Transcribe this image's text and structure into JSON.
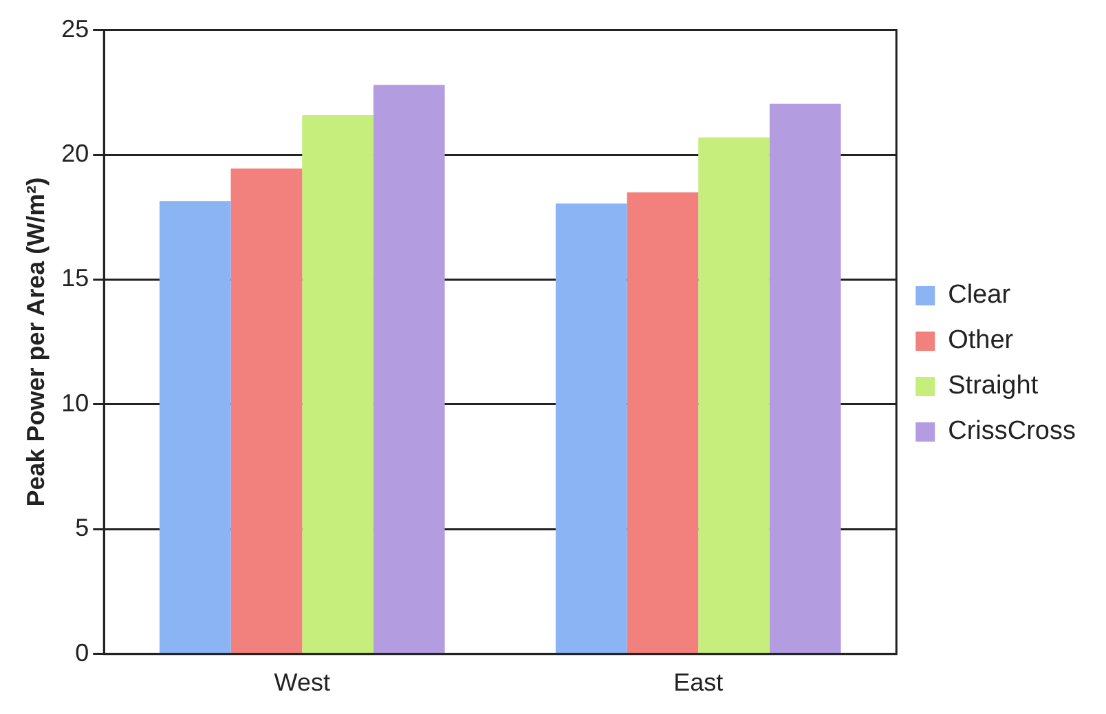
{
  "chart_data": {
    "type": "bar",
    "ylabel": "Peak Power per Area (W/m²)",
    "categories": [
      "West",
      "East"
    ],
    "series": [
      {
        "name": "Clear",
        "color": "#8ab4f4",
        "values": [
          18.15,
          18.05
        ]
      },
      {
        "name": "Other",
        "color": "#f2807c",
        "values": [
          19.45,
          18.5
        ]
      },
      {
        "name": "Straight",
        "color": "#c6ee7c",
        "values": [
          21.6,
          20.7
        ]
      },
      {
        "name": "CrissCross",
        "color": "#b49ce0",
        "values": [
          22.8,
          22.05
        ]
      }
    ],
    "ylim": [
      0,
      25
    ],
    "yticks": [
      0,
      5,
      10,
      15,
      20,
      25
    ],
    "grid": "y",
    "legend": "right"
  }
}
